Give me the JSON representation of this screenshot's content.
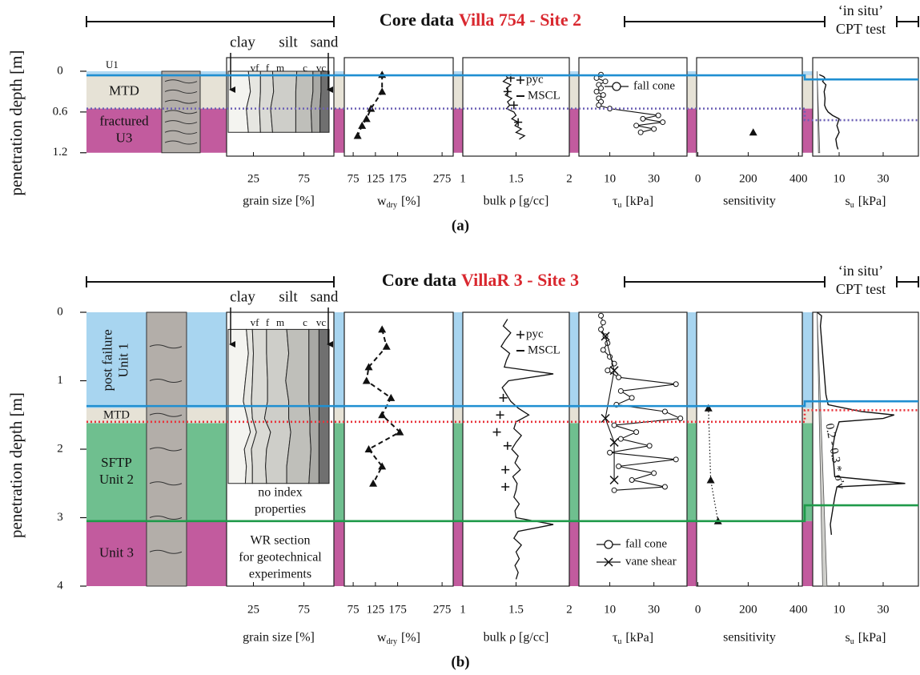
{
  "chart_data": [
    {
      "type": "core-log",
      "title": "Core data",
      "site": "Villa  754  - Site 2",
      "cpt_label": [
        "‘in situ’",
        "CPT test"
      ],
      "caption": "(a)",
      "ylabel": "penetration depth [m]",
      "ylim": [
        -0.2,
        1.25
      ],
      "yticks": [
        0,
        0.6,
        1.2
      ],
      "layers": [
        {
          "label": [
            "U1"
          ],
          "top": 0,
          "bottom": 0.06,
          "color": "#b3d9f2"
        },
        {
          "label": [
            "MTD"
          ],
          "top": 0.06,
          "bottom": 0.55,
          "color": "#e6e2d6"
        },
        {
          "label": [
            "fractured",
            "U3"
          ],
          "top": 0.55,
          "bottom": 1.2,
          "color": "#c25b9e"
        }
      ],
      "boundaries": [
        {
          "depth": 0.06,
          "cpt_depth": 0.12,
          "color": "#1f8fd1",
          "dashed": false
        },
        {
          "depth": 0.55,
          "cpt_depth": 0.72,
          "color": "#6b5fb5",
          "dashed": true
        }
      ],
      "grain": {
        "labels": [
          "clay",
          "silt",
          "sand"
        ],
        "classes": [
          "vf",
          "f",
          "m",
          "c",
          "vc"
        ],
        "xlabel": "grain size  [%]",
        "xlim": [
          0,
          100
        ],
        "xticks": [
          25,
          75
        ],
        "depths": [
          0,
          0.3,
          0.55,
          0.9
        ],
        "notes": [],
        "bands": [
          {
            "color": "#f4f4f0",
            "values": [
              20,
              22,
              18,
              20
            ]
          },
          {
            "color": "#e6e6e1",
            "values": [
              12,
              10,
              13,
              12
            ]
          },
          {
            "color": "#dadad5",
            "values": [
              12,
              13,
              11,
              12
            ]
          },
          {
            "color": "#cecec9",
            "values": [
              24,
              22,
              25,
              23
            ]
          },
          {
            "color": "#bfbfba",
            "values": [
              16,
              17,
              15,
              16
            ]
          },
          {
            "color": "#a9a9a5",
            "values": [
              8,
              8,
              9,
              8
            ]
          },
          {
            "color": "#707070",
            "values": [
              8,
              8,
              9,
              9
            ]
          }
        ]
      },
      "w_dry": {
        "xlabel": {
          "main": "w",
          "sub": "dry",
          "unit": "[%]"
        },
        "xlim": [
          55,
          300
        ],
        "xticks": [
          75,
          125,
          175,
          275
        ],
        "depths": [
          0.05,
          0.3,
          0.55,
          0.7,
          0.8,
          0.95
        ],
        "values": [
          140,
          140,
          115,
          105,
          95,
          85
        ]
      },
      "bulk": {
        "xlabel": "bulk ρ [g/cc]",
        "xlim": [
          1,
          2
        ],
        "xticks": [
          1,
          1.5,
          2
        ],
        "series": [
          {
            "name": "pyc",
            "depths": [
              0.1,
              0.3,
              0.5,
              0.75
            ],
            "values": [
              1.45,
              1.42,
              1.48,
              1.52
            ]
          },
          {
            "name": "MSCL",
            "depths": [
              0.05,
              0.1,
              0.15,
              0.2,
              0.25,
              0.3,
              0.35,
              0.4,
              0.45,
              0.5,
              0.55,
              0.6,
              0.65,
              0.7,
              0.75,
              0.8,
              0.85,
              0.9,
              0.95,
              1.0
            ],
            "values": [
              1.4,
              1.42,
              1.38,
              1.45,
              1.41,
              1.43,
              1.4,
              1.46,
              1.42,
              1.44,
              1.41,
              1.48,
              1.5,
              1.46,
              1.52,
              1.49,
              1.55,
              1.5,
              1.58,
              1.53
            ]
          }
        ]
      },
      "tau": {
        "xlabel": {
          "main": "τ",
          "sub": "u",
          "unit": "[kPa]"
        },
        "xlim": [
          -4,
          45
        ],
        "xticks": [
          10,
          30
        ],
        "series": [
          {
            "name": "fall cone",
            "depths": [
              0.05,
              0.1,
              0.15,
              0.2,
              0.25,
              0.3,
              0.35,
              0.4,
              0.45,
              0.5,
              0.55,
              0.65,
              0.7,
              0.75,
              0.8,
              0.85,
              0.9
            ],
            "values": [
              6,
              4,
              8,
              5,
              6,
              4,
              7,
              5,
              6,
              5,
              10,
              32,
              25,
              34,
              22,
              30,
              24
            ]
          }
        ]
      },
      "sensitivity": {
        "xlabel": "sensitivity",
        "xlim": [
          -5,
          415
        ],
        "xticks": [
          0,
          200,
          400
        ],
        "depths": [
          0.9
        ],
        "values": [
          220
        ]
      },
      "s_u": {
        "xlabel": {
          "main": "s",
          "sub": "u",
          "unit": "[kPa]"
        },
        "xlim": [
          -2,
          46
        ],
        "xticks": [
          10,
          30
        ],
        "depths": [
          0.05,
          0.08,
          0.1,
          0.15,
          0.2,
          0.3,
          0.4,
          0.5,
          0.55,
          0.6,
          0.65,
          0.7,
          0.8,
          0.9,
          1.0,
          1.1,
          1.15
        ],
        "values": [
          1,
          3,
          3.5,
          2.5,
          4,
          3.2,
          3.6,
          3.4,
          4,
          5,
          7,
          10,
          9,
          10,
          8.5,
          9,
          9.5
        ],
        "trend": {
          "depths": [
            0,
            1.2
          ],
          "low": [
            0,
            0.6
          ],
          "high": [
            0,
            1.2
          ]
        }
      }
    },
    {
      "type": "core-log",
      "title": "Core data",
      "site": "VillaR 3 - Site 3",
      "cpt_label": [
        "‘in situ’",
        "CPT test"
      ],
      "caption": "(b)",
      "ylabel": "penetration depth [m]",
      "ylim": [
        0,
        4
      ],
      "yticks": [
        0,
        1,
        2,
        3,
        4
      ],
      "layers": [
        {
          "label": [
            "post failure",
            "Unit 1"
          ],
          "top": 0,
          "bottom": 1.4,
          "color": "#a8d5f0",
          "rotated": true
        },
        {
          "label": [
            "MTD"
          ],
          "top": 1.4,
          "bottom": 1.62,
          "color": "#e6e2d6"
        },
        {
          "label": [
            "SFTP",
            "Unit 2"
          ],
          "top": 1.62,
          "bottom": 3.05,
          "color": "#6fbf8f"
        },
        {
          "label": [
            "Unit 3"
          ],
          "top": 3.05,
          "bottom": 4,
          "color": "#c25b9e"
        }
      ],
      "boundaries": [
        {
          "depth": 1.37,
          "cpt_depth": 1.3,
          "color": "#1f8fd1",
          "dashed": false
        },
        {
          "depth": 1.6,
          "cpt_depth": 1.43,
          "color": "#e8333a",
          "dashed": true
        },
        {
          "depth": 3.05,
          "cpt_depth": 2.82,
          "color": "#1f9a4a",
          "dashed": false
        }
      ],
      "grain": {
        "labels": [
          "clay",
          "silt",
          "sand"
        ],
        "classes": [
          "vf",
          "f",
          "m",
          "c",
          "vc"
        ],
        "xlabel": "grain size  [%]",
        "xlim": [
          0,
          100
        ],
        "xticks": [
          25,
          75
        ],
        "depths": [
          0.25,
          0.6,
          1.0,
          1.3,
          1.55,
          1.75,
          2.0,
          2.25,
          2.5
        ],
        "notes": [
          [
            "no index",
            "properties"
          ],
          [
            "WR section",
            "for geotechnical",
            "experiments"
          ]
        ],
        "bands": [
          {
            "color": "#f4f4f0",
            "values": [
              18,
              20,
              17,
              15,
              19,
              22,
              16,
              18,
              17
            ]
          },
          {
            "color": "#e6e6e1",
            "values": [
              6,
              5,
              7,
              8,
              5,
              6,
              7,
              6,
              7
            ]
          },
          {
            "color": "#dadad5",
            "values": [
              14,
              13,
              15,
              16,
              12,
              14,
              15,
              13,
              14
            ]
          },
          {
            "color": "#cecec9",
            "values": [
              20,
              22,
              18,
              21,
              24,
              20,
              22,
              21,
              20
            ]
          },
          {
            "color": "#bfbfba",
            "values": [
              22,
              20,
              23,
              20,
              21,
              19,
              22,
              23,
              22
            ]
          },
          {
            "color": "#a9a9a5",
            "values": [
              10,
              10,
              10,
              10,
              9,
              9,
              8,
              9,
              10
            ]
          },
          {
            "color": "#707070",
            "values": [
              10,
              10,
              10,
              10,
              10,
              10,
              10,
              10,
              10
            ]
          }
        ]
      },
      "w_dry": {
        "xlabel": {
          "main": "w",
          "sub": "dry",
          "unit": "[%]"
        },
        "xlim": [
          55,
          300
        ],
        "xticks": [
          75,
          125,
          175,
          275
        ],
        "depths": [
          0.25,
          0.5,
          0.8,
          1.0,
          1.25,
          1.5,
          1.75,
          2.0,
          2.25,
          2.5
        ],
        "values": [
          140,
          150,
          110,
          105,
          160,
          140,
          180,
          110,
          140,
          120
        ]
      },
      "bulk": {
        "xlabel": "bulk ρ [g/cc]",
        "xlim": [
          1,
          2
        ],
        "xticks": [
          1,
          1.5,
          2
        ],
        "series": [
          {
            "name": "pyc",
            "depths": [
              1.25,
              1.5,
              1.75,
              1.95,
              2.3,
              2.55
            ],
            "values": [
              1.38,
              1.35,
              1.32,
              1.42,
              1.4,
              1.4
            ]
          },
          {
            "name": "MSCL",
            "depths": [
              0.1,
              0.2,
              0.3,
              0.4,
              0.5,
              0.6,
              0.7,
              0.8,
              0.9,
              1.0,
              1.1,
              1.2,
              1.3,
              1.4,
              1.5,
              1.6,
              1.7,
              1.8,
              1.9,
              2.0,
              2.1,
              2.2,
              2.3,
              2.4,
              2.5,
              2.6,
              2.7,
              2.8,
              2.9,
              3.0,
              3.1,
              3.2,
              3.3,
              3.4,
              3.5,
              3.6,
              3.7,
              3.8,
              3.9
            ],
            "values": [
              1.42,
              1.38,
              1.45,
              1.4,
              1.36,
              1.44,
              1.41,
              1.39,
              1.85,
              1.43,
              1.37,
              1.41,
              1.45,
              1.52,
              1.62,
              1.5,
              1.48,
              1.55,
              1.5,
              1.46,
              1.52,
              1.49,
              1.54,
              1.47,
              1.51,
              1.5,
              1.48,
              1.53,
              1.49,
              1.5,
              1.85,
              1.52,
              1.48,
              1.55,
              1.5,
              1.53,
              1.49,
              1.52,
              1.5
            ]
          }
        ]
      },
      "tau": {
        "xlabel": {
          "main": "τ",
          "sub": "u",
          "unit": "[kPa]"
        },
        "xlim": [
          -4,
          45
        ],
        "xticks": [
          10,
          30
        ],
        "series": [
          {
            "name": "fall cone",
            "depths": [
              0.05,
              0.15,
              0.25,
              0.35,
              0.45,
              0.55,
              0.65,
              0.75,
              0.85,
              0.95,
              1.05,
              1.15,
              1.25,
              1.35,
              1.45,
              1.55,
              1.65,
              1.75,
              1.85,
              1.95,
              2.05,
              2.15,
              2.25,
              2.35,
              2.45,
              2.55,
              2.6
            ],
            "values": [
              6,
              7,
              6,
              8,
              9,
              7,
              10,
              12,
              9,
              14,
              40,
              15,
              20,
              13,
              35,
              42,
              12,
              22,
              15,
              28,
              10,
              40,
              14,
              30,
              20,
              35,
              12
            ]
          },
          {
            "name": "vane shear",
            "depths": [
              0.35,
              0.85,
              1.55,
              1.9,
              2.45
            ],
            "values": [
              8,
              12,
              8,
              12,
              12
            ]
          }
        ]
      },
      "sensitivity": {
        "xlabel": "sensitivity",
        "xlim": [
          -5,
          415
        ],
        "xticks": [
          0,
          200,
          400
        ],
        "depths": [
          1.4,
          2.45,
          3.05
        ],
        "values": [
          42,
          51,
          80
        ]
      },
      "s_u": {
        "xlabel": {
          "main": "s",
          "sub": "u",
          "unit": "[kPa]"
        },
        "xlim": [
          -2,
          46
        ],
        "xticks": [
          10,
          30
        ],
        "depths": [
          0,
          0.05,
          0.2,
          0.4,
          0.6,
          0.8,
          1.0,
          1.2,
          1.35,
          1.45,
          1.5,
          1.55,
          1.6,
          1.8,
          2.0,
          2.2,
          2.4,
          2.5,
          2.55,
          2.7,
          2.9,
          3.1,
          3.25
        ],
        "values": [
          0,
          2,
          1.5,
          2,
          2.5,
          3,
          3.5,
          4,
          5,
          20,
          35,
          30,
          10,
          8,
          7,
          7.5,
          8,
          40,
          9,
          8,
          7,
          6,
          6.5
        ],
        "trend": {
          "depths": [
            0,
            4
          ],
          "low": [
            0,
            2.5
          ],
          "high": [
            0,
            4.5
          ],
          "label": "0.2 - 0.3 * σ'v"
        }
      }
    }
  ]
}
